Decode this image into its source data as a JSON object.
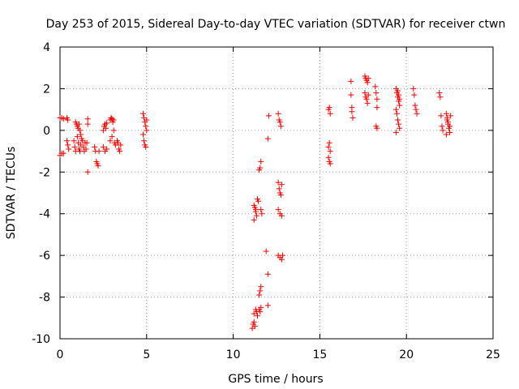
{
  "chart_data": {
    "type": "scatter",
    "title": "Day 253 of 2015, Sidereal Day-to-day VTEC variation (SDTVAR) for receiver ctwn",
    "xlabel": "GPS time / hours",
    "ylabel": "SDTVAR / TECUs",
    "xlim": [
      0,
      25
    ],
    "ylim": [
      -10,
      4
    ],
    "xticks": [
      0,
      5,
      10,
      15,
      20,
      25
    ],
    "yticks": [
      -10,
      -8,
      -6,
      -4,
      -2,
      0,
      2,
      4
    ],
    "xtick_labels": [
      "0",
      "5",
      "10",
      "15",
      "20",
      "25"
    ],
    "ytick_labels": [
      "-10",
      "-8",
      "-6",
      "-4",
      "-2",
      "0",
      "2",
      "4"
    ],
    "grid": true,
    "marker": "+",
    "color": "#ff0000",
    "series": [
      {
        "name": "SDTVAR",
        "points": [
          [
            0.0,
            0.6
          ],
          [
            0.1,
            0.6
          ],
          [
            0.2,
            0.55
          ],
          [
            0.4,
            0.6
          ],
          [
            0.45,
            0.5
          ],
          [
            0.0,
            -1.2
          ],
          [
            0.1,
            -1.1
          ],
          [
            0.2,
            -1.1
          ],
          [
            0.4,
            -0.5
          ],
          [
            0.45,
            -0.7
          ],
          [
            0.5,
            -0.9
          ],
          [
            0.8,
            -0.5
          ],
          [
            0.85,
            -0.8
          ],
          [
            0.9,
            -1.0
          ],
          [
            0.9,
            0.4
          ],
          [
            0.95,
            0.3
          ],
          [
            1.0,
            0.2
          ],
          [
            1.05,
            0.1
          ],
          [
            1.1,
            0.3
          ],
          [
            1.15,
            0.0
          ],
          [
            1.2,
            -0.2
          ],
          [
            1.0,
            -0.3
          ],
          [
            1.05,
            -0.6
          ],
          [
            1.1,
            -0.9
          ],
          [
            1.15,
            -1.0
          ],
          [
            1.2,
            -0.7
          ],
          [
            1.25,
            -0.4
          ],
          [
            1.3,
            -0.5
          ],
          [
            1.35,
            -0.8
          ],
          [
            1.4,
            -1.0
          ],
          [
            1.45,
            -0.6
          ],
          [
            1.5,
            -0.9
          ],
          [
            1.55,
            -0.6
          ],
          [
            1.6,
            0.55
          ],
          [
            1.6,
            0.3
          ],
          [
            1.6,
            -2.0
          ],
          [
            2.0,
            -0.8
          ],
          [
            2.05,
            -1.0
          ],
          [
            2.1,
            -1.5
          ],
          [
            2.15,
            -1.6
          ],
          [
            2.2,
            -1.7
          ],
          [
            2.25,
            -1.0
          ],
          [
            2.5,
            0.0
          ],
          [
            2.55,
            0.2
          ],
          [
            2.6,
            0.3
          ],
          [
            2.65,
            0.1
          ],
          [
            2.7,
            0.35
          ],
          [
            2.5,
            -0.8
          ],
          [
            2.6,
            -1.0
          ],
          [
            2.7,
            -0.9
          ],
          [
            2.9,
            0.5
          ],
          [
            2.95,
            0.6
          ],
          [
            3.0,
            0.55
          ],
          [
            3.05,
            0.4
          ],
          [
            3.1,
            0.5
          ],
          [
            2.9,
            -0.5
          ],
          [
            3.0,
            -0.3
          ],
          [
            3.1,
            0.0
          ],
          [
            3.15,
            -0.6
          ],
          [
            3.2,
            -0.7
          ],
          [
            3.3,
            -0.5
          ],
          [
            3.35,
            -0.6
          ],
          [
            3.4,
            -0.9
          ],
          [
            3.45,
            -1.0
          ],
          [
            3.5,
            -0.7
          ],
          [
            4.8,
            0.8
          ],
          [
            4.85,
            0.6
          ],
          [
            4.9,
            0.4
          ],
          [
            4.95,
            0.2
          ],
          [
            5.0,
            0.0
          ],
          [
            4.8,
            -0.2
          ],
          [
            4.85,
            -0.5
          ],
          [
            4.9,
            -0.7
          ],
          [
            4.95,
            -0.8
          ],
          [
            5.0,
            0.5
          ],
          [
            11.2,
            -3.6
          ],
          [
            11.25,
            -3.7
          ],
          [
            11.3,
            -3.9
          ],
          [
            11.35,
            -4.1
          ],
          [
            11.4,
            -3.3
          ],
          [
            11.2,
            -4.3
          ],
          [
            11.3,
            -3.8
          ],
          [
            11.45,
            -3.4
          ],
          [
            11.5,
            -1.9
          ],
          [
            11.55,
            -1.8
          ],
          [
            11.6,
            -1.5
          ],
          [
            11.6,
            -3.8
          ],
          [
            11.65,
            -4.0
          ],
          [
            11.1,
            -9.5
          ],
          [
            11.15,
            -9.3
          ],
          [
            11.2,
            -9.2
          ],
          [
            11.25,
            -9.4
          ],
          [
            11.2,
            -8.8
          ],
          [
            11.3,
            -8.6
          ],
          [
            11.35,
            -8.7
          ],
          [
            11.4,
            -8.9
          ],
          [
            11.5,
            -8.6
          ],
          [
            11.55,
            -8.7
          ],
          [
            11.6,
            -8.5
          ],
          [
            11.5,
            -7.9
          ],
          [
            11.55,
            -7.7
          ],
          [
            11.6,
            -7.5
          ],
          [
            11.9,
            -5.8
          ],
          [
            12.0,
            -6.9
          ],
          [
            12.0,
            -8.4
          ],
          [
            12.0,
            -0.4
          ],
          [
            12.05,
            0.7
          ],
          [
            12.6,
            0.8
          ],
          [
            12.65,
            0.5
          ],
          [
            12.7,
            0.4
          ],
          [
            12.75,
            0.2
          ],
          [
            12.6,
            -2.5
          ],
          [
            12.65,
            -2.8
          ],
          [
            12.7,
            -3.0
          ],
          [
            12.75,
            -3.1
          ],
          [
            12.8,
            -2.6
          ],
          [
            12.6,
            -3.8
          ],
          [
            12.7,
            -4.0
          ],
          [
            12.8,
            -4.1
          ],
          [
            12.6,
            -6.0
          ],
          [
            12.7,
            -6.1
          ],
          [
            12.8,
            -6.2
          ],
          [
            12.85,
            -6.0
          ],
          [
            15.5,
            1.0
          ],
          [
            15.55,
            1.1
          ],
          [
            15.6,
            0.8
          ],
          [
            15.5,
            -0.8
          ],
          [
            15.55,
            -0.6
          ],
          [
            15.6,
            -1.0
          ],
          [
            15.5,
            -1.3
          ],
          [
            15.55,
            -1.5
          ],
          [
            15.6,
            -1.6
          ],
          [
            16.8,
            2.35
          ],
          [
            16.8,
            1.7
          ],
          [
            16.85,
            1.1
          ],
          [
            16.85,
            0.9
          ],
          [
            16.9,
            0.6
          ],
          [
            17.6,
            2.6
          ],
          [
            17.65,
            2.5
          ],
          [
            17.7,
            2.4
          ],
          [
            17.75,
            2.3
          ],
          [
            17.8,
            2.5
          ],
          [
            17.6,
            1.8
          ],
          [
            17.65,
            1.6
          ],
          [
            17.7,
            1.5
          ],
          [
            17.75,
            1.3
          ],
          [
            17.8,
            1.7
          ],
          [
            18.2,
            2.1
          ],
          [
            18.25,
            1.8
          ],
          [
            18.3,
            1.5
          ],
          [
            18.3,
            1.1
          ],
          [
            18.25,
            0.2
          ],
          [
            18.3,
            0.1
          ],
          [
            19.4,
            2.0
          ],
          [
            19.45,
            1.8
          ],
          [
            19.5,
            1.6
          ],
          [
            19.55,
            1.4
          ],
          [
            19.6,
            1.2
          ],
          [
            19.4,
            1.0
          ],
          [
            19.45,
            0.8
          ],
          [
            19.5,
            0.5
          ],
          [
            19.55,
            0.3
          ],
          [
            19.6,
            0.1
          ],
          [
            19.4,
            -0.1
          ],
          [
            19.5,
            1.9
          ],
          [
            19.55,
            1.7
          ],
          [
            19.6,
            1.5
          ],
          [
            20.4,
            2.0
          ],
          [
            20.45,
            1.7
          ],
          [
            20.5,
            1.2
          ],
          [
            20.55,
            1.0
          ],
          [
            20.6,
            0.8
          ],
          [
            21.9,
            1.8
          ],
          [
            21.95,
            1.6
          ],
          [
            22.0,
            0.7
          ],
          [
            22.05,
            0.2
          ],
          [
            22.1,
            0.0
          ],
          [
            22.3,
            0.8
          ],
          [
            22.35,
            0.5
          ],
          [
            22.4,
            0.3
          ],
          [
            22.45,
            0.1
          ],
          [
            22.5,
            -0.1
          ],
          [
            22.3,
            -0.2
          ],
          [
            22.35,
            0.6
          ],
          [
            22.4,
            0.4
          ],
          [
            22.5,
            0.2
          ],
          [
            22.55,
            0.7
          ]
        ]
      }
    ]
  }
}
